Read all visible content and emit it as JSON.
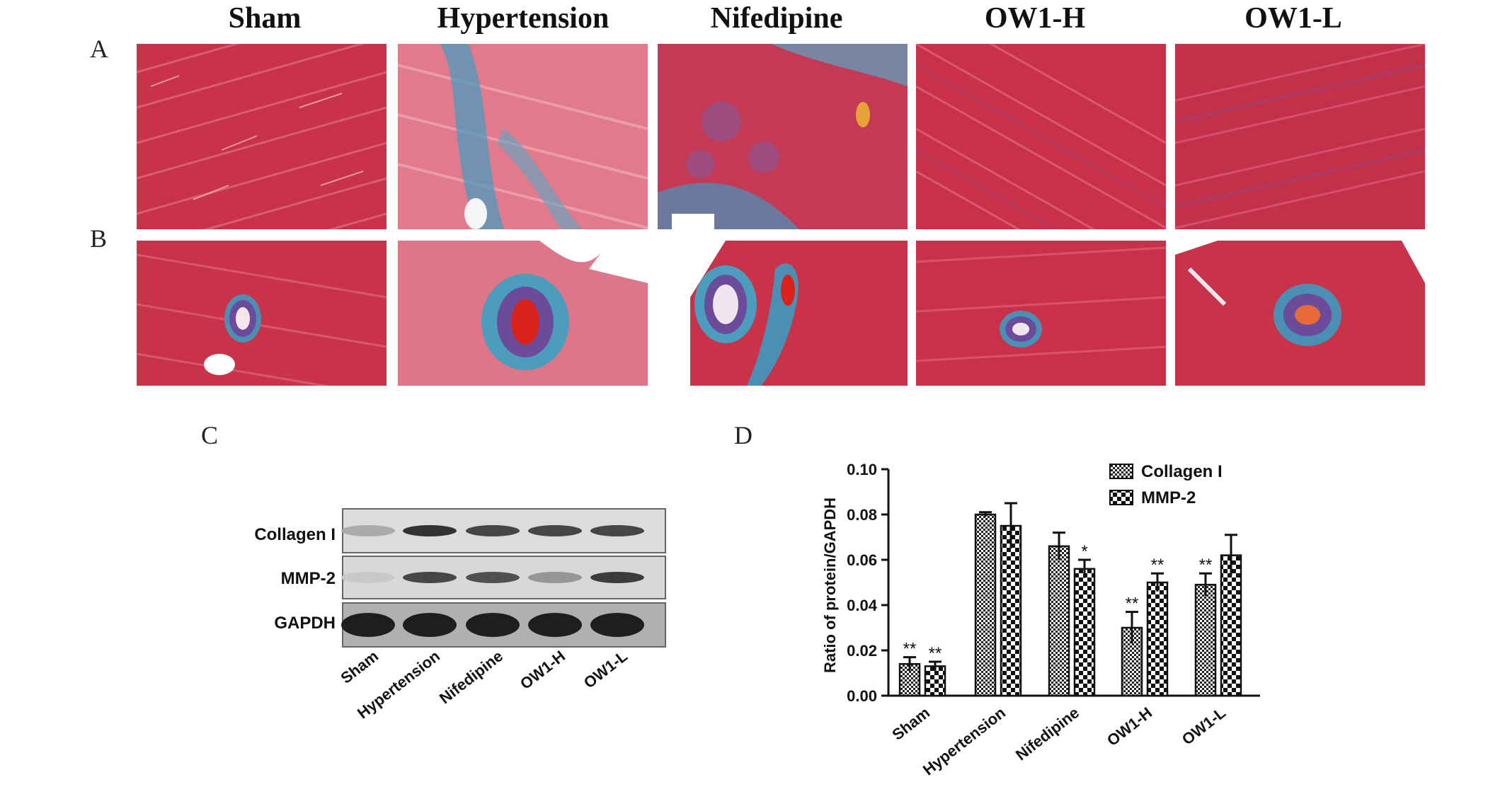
{
  "groups": [
    "Sham",
    "Hypertension",
    "Nifedipine",
    "OW1-H",
    "OW1-L"
  ],
  "panel_labels": {
    "A": "A",
    "B": "B",
    "C": "C",
    "D": "D"
  },
  "colors": {
    "myocardium": "#c8334a",
    "myocardium_light": "#e27488",
    "collagen_blue": "#3a8fb0",
    "vessel_purple": "#5b3a8a",
    "blood_red": "#d8221a"
  },
  "western_blot": {
    "proteins": [
      "Collagen I",
      "MMP-2",
      "GAPDH"
    ],
    "lanes": [
      "Sham",
      "Hypertension",
      "Nifedipine",
      "OW1-H",
      "OW1-L"
    ],
    "band_intensity": [
      [
        0.25,
        0.85,
        0.75,
        0.75,
        0.75
      ],
      [
        0.1,
        0.75,
        0.7,
        0.35,
        0.8
      ],
      [
        0.95,
        0.95,
        0.95,
        0.95,
        0.95
      ]
    ]
  },
  "chart_data": {
    "type": "bar",
    "title": "",
    "xlabel": "",
    "ylabel": "Ratio of protein/GAPDH",
    "ylim": [
      0,
      0.1
    ],
    "yticks": [
      "0.00",
      "0.02",
      "0.04",
      "0.06",
      "0.08",
      "0.10"
    ],
    "categories": [
      "Sham",
      "Hypertension",
      "Nifedipine",
      "OW1-H",
      "OW1-L"
    ],
    "series": [
      {
        "name": "Collagen I",
        "pattern": "fine-check",
        "values": [
          0.014,
          0.08,
          0.066,
          0.03,
          0.049
        ],
        "errors": [
          0.003,
          0.001,
          0.006,
          0.007,
          0.005
        ],
        "annotations": [
          "**",
          "",
          "",
          "**",
          "**"
        ]
      },
      {
        "name": "MMP-2",
        "pattern": "coarse-check",
        "values": [
          0.013,
          0.075,
          0.056,
          0.05,
          0.062
        ],
        "errors": [
          0.002,
          0.01,
          0.004,
          0.004,
          0.009
        ],
        "annotations": [
          "**",
          "",
          "*",
          "**",
          ""
        ]
      }
    ],
    "legend": "top-right",
    "grid": false
  }
}
